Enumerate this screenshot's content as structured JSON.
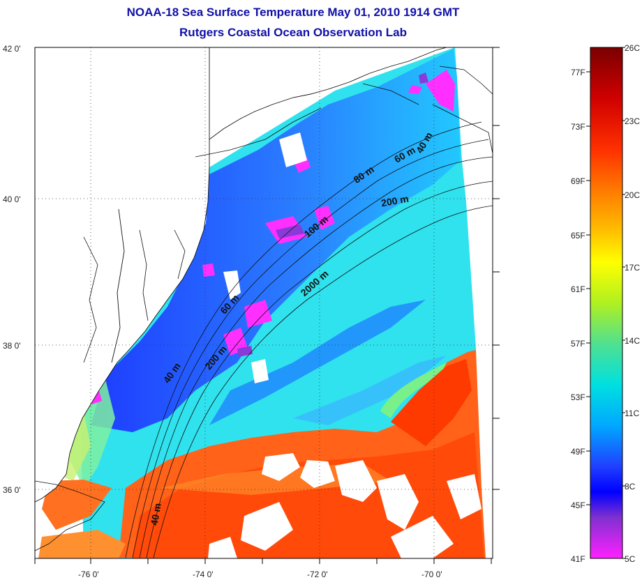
{
  "header": {
    "title": "NOAA-18 Sea Surface Temperature May 01, 2010 1914 GMT",
    "subtitle": "Rutgers Coastal Ocean Observation Lab"
  },
  "map": {
    "lat_labels": [
      "42 0'",
      "40 0'",
      "38 0'",
      "36 0'"
    ],
    "lon_labels": [
      "-76 0'",
      "-74 0'",
      "-72 0'",
      "-70 0'"
    ],
    "depth_labels": [
      "40 m",
      "60 m",
      "80 m",
      "200 m",
      "100 m",
      "2000 m",
      "60 m",
      "200 m",
      "40 m",
      "40 m"
    ],
    "grid": "dotted"
  },
  "colorbar": {
    "celsius_labels": [
      "26C",
      "23C",
      "20C",
      "17C",
      "14C",
      "11C",
      "8C",
      "5C"
    ],
    "fahrenheit_labels": [
      "77F",
      "73F",
      "69F",
      "65F",
      "61F",
      "57F",
      "53F",
      "49F",
      "45F",
      "41F"
    ],
    "colors": [
      "#7a0000",
      "#e00000",
      "#ff5a00",
      "#ffa000",
      "#ffff00",
      "#b0f020",
      "#40e0a0",
      "#00e0e0",
      "#00a0ff",
      "#2040ff",
      "#0000ff",
      "#8030d0",
      "#ff00ff"
    ]
  }
}
